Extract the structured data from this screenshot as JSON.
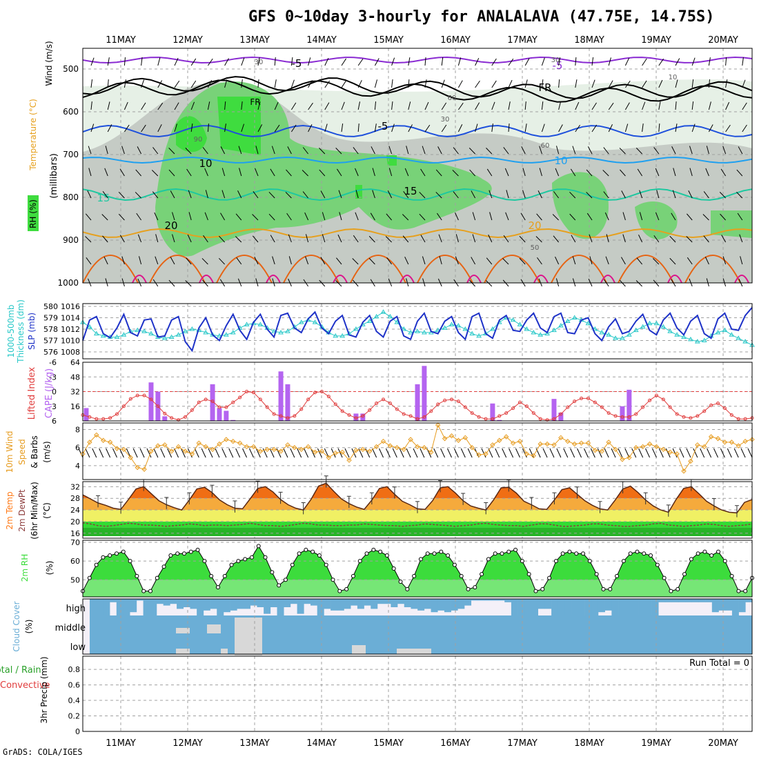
{
  "page": {
    "title": "GFS 0~10day 3-hourly for ANALALAVA (47.75E, 14.75S)",
    "footer": "GrADS: COLA/IGES",
    "colors": {
      "rh_green": "#3fdc3f",
      "rh_light": "#78d278",
      "gray_fill": "#c5cbc5",
      "pale_fill": "#e6f0e6",
      "temp_purple": "#8a2bd2",
      "temp_blue": "#1e50dc",
      "temp_cyan": "#1ea0f0",
      "temp_teal": "#1ec8a0",
      "temp_orange": "#e6a01e",
      "temp_darkorange": "#e66414",
      "temp_magenta": "#dc148c",
      "slp_color": "#1e32c8",
      "thick_color": "#28c8c8",
      "cape_color": "#b464f0",
      "li_color": "#e03c3c",
      "wind_color": "#e69b1e",
      "t2m_color": "#ff7814",
      "rh2m_color": "#3cdc3c",
      "cloud_color": "#6baed6",
      "cloud_bg": "#f4f0f8",
      "grid_color": "#a0a0a0"
    }
  },
  "chart_data": [
    {
      "panel": "upper_air",
      "type": "heatmap",
      "x_dates": [
        "11MAY",
        "12MAY",
        "13MAY",
        "14MAY",
        "15MAY",
        "16MAY",
        "17MAY",
        "18MAY",
        "19MAY",
        "20MAY"
      ],
      "ylabel_lines": [
        "Wind (m/s)",
        "Temperature (°C)",
        "RH (%)",
        "(millibars)"
      ],
      "y_ticks": [
        500,
        600,
        700,
        800,
        900,
        1000
      ],
      "isotherm_labels": [
        {
          "text": "-5",
          "color": "#8a2bd2"
        },
        {
          "text": "FR",
          "color": "#000000"
        },
        {
          "text": "-5",
          "color": "#1e50dc"
        },
        {
          "text": "10",
          "color": "#1ea0f0"
        },
        {
          "text": "15",
          "color": "#1ec8a0"
        },
        {
          "text": "20",
          "color": "#e6a01e"
        }
      ],
      "rh_labels": [
        "30",
        "10",
        "30",
        "60",
        "90",
        "60",
        "50",
        "30"
      ]
    },
    {
      "panel": "slp_thickness",
      "type": "line",
      "ylabel_left": [
        "1000-500mb",
        "Thickness (dm)"
      ],
      "ylabel_right": "SLP (mb)",
      "left_ticks": [
        576,
        577,
        578,
        579,
        580
      ],
      "right_ticks": [
        1008,
        1010,
        1012,
        1014,
        1016
      ],
      "series": [
        {
          "name": "SLP (mb)",
          "values": [
            1010.0,
            1013.6,
            1014.2,
            1011.2,
            1010.5,
            1012.2,
            1014.6,
            1011.4,
            1010.8,
            1013.6,
            1013.8,
            1010.6,
            1010.8,
            1013.6,
            1014.2,
            1009.8,
            1008.2,
            1012.2,
            1014.0,
            1011.0,
            1010.0,
            1012.6,
            1014.6,
            1011.8,
            1010.2,
            1013.2,
            1014.6,
            1012.0,
            1010.6,
            1014.4,
            1014.8,
            1012.2,
            1011.4,
            1013.8,
            1015.0,
            1012.2,
            1011.2,
            1013.4,
            1014.4,
            1011.0,
            1010.6,
            1013.2,
            1014.4,
            1011.6,
            1010.6,
            1013.4,
            1014.2,
            1010.8,
            1010.2,
            1013.4,
            1014.8,
            1011.6,
            1011.2,
            1013.4,
            1014.2,
            1011.4,
            1010.2,
            1014.2,
            1014.8,
            1011.2,
            1010.4,
            1013.6,
            1014.4,
            1011.8,
            1011.6,
            1013.6,
            1014.8,
            1012.2,
            1011.4,
            1014.2,
            1014.8,
            1011.4,
            1011.2,
            1013.6,
            1014.0,
            1011.2,
            1010.0,
            1012.4,
            1013.8,
            1011.2,
            1011.6,
            1013.4,
            1014.6,
            1011.8,
            1011.0,
            1013.6,
            1014.8,
            1012.2,
            1011.0,
            1013.4,
            1014.4,
            1011.2,
            1010.4,
            1013.8,
            1014.8,
            1012.0,
            1011.8,
            1014.4,
            1015.8
          ]
        },
        {
          "name": "Thickness (dm)",
          "values": [
            578.6,
            578.2,
            577.6,
            577.4,
            577.3,
            577.3,
            577.5,
            577.8,
            577.9,
            577.8,
            577.6,
            577.3,
            577.2,
            577.3,
            577.5,
            577.8,
            578.0,
            577.9,
            577.7,
            577.5,
            577.4,
            577.5,
            577.7,
            578.1,
            578.4,
            578.5,
            578.4,
            578.1,
            577.8,
            577.7,
            577.8,
            578.2,
            578.6,
            578.8,
            578.6,
            578.2,
            577.7,
            577.4,
            577.4,
            577.6,
            578.0,
            578.4,
            578.7,
            579.1,
            579.5,
            579.1,
            578.6,
            578.0,
            577.7,
            577.8,
            577.7,
            577.7,
            577.9,
            578.1,
            578.4,
            578.3,
            578.0,
            577.6,
            577.4,
            577.6,
            578.0,
            578.6,
            579.0,
            578.8,
            578.4,
            578.0,
            577.7,
            577.5,
            577.6,
            577.9,
            578.3,
            578.7,
            579.0,
            578.8,
            578.5,
            578.0,
            577.7,
            577.5,
            577.2,
            577.2,
            577.5,
            577.9,
            578.2,
            578.5,
            578.5,
            578.2,
            577.8,
            577.5,
            577.3,
            577.1,
            576.9,
            577.0,
            577.4,
            577.7,
            577.9,
            577.5,
            577.2,
            576.9,
            576.6
          ]
        }
      ]
    },
    {
      "panel": "cape_li",
      "type": "bar",
      "ylabel_left": "Lifted Index",
      "ylabel_right": "CAPE (J/kg)",
      "left_ticks": [
        "-6",
        "-3",
        "0",
        "3",
        "6"
      ],
      "right_ticks": [
        16,
        32,
        48,
        64
      ],
      "cape_bars": [
        {
          "t": 0.5,
          "v": 14
        },
        {
          "t": 10,
          "v": 42
        },
        {
          "t": 11,
          "v": 32
        },
        {
          "t": 12,
          "v": 5
        },
        {
          "t": 19,
          "v": 40
        },
        {
          "t": 20,
          "v": 14
        },
        {
          "t": 21,
          "v": 11
        },
        {
          "t": 22,
          "v": 1
        },
        {
          "t": 29,
          "v": 54
        },
        {
          "t": 30,
          "v": 40
        },
        {
          "t": 40,
          "v": 8
        },
        {
          "t": 41,
          "v": 8
        },
        {
          "t": 49,
          "v": 40
        },
        {
          "t": 50,
          "v": 60
        },
        {
          "t": 60,
          "v": 19
        },
        {
          "t": 61,
          "v": 1
        },
        {
          "t": 69,
          "v": 24
        },
        {
          "t": 70,
          "v": 9
        },
        {
          "t": 79,
          "v": 16
        },
        {
          "t": 80,
          "v": 34
        }
      ],
      "lifted_index": [
        4.8,
        5.2,
        5.6,
        5.6,
        5.4,
        4.6,
        3.0,
        1.5,
        0.8,
        0.8,
        1.6,
        3.0,
        4.5,
        5.4,
        5.8,
        5.2,
        3.8,
        2.2,
        1.6,
        2.0,
        3.2,
        3.2,
        2.2,
        1.2,
        0.0,
        0.2,
        1.6,
        3.2,
        4.6,
        5.0,
        5.4,
        5.0,
        3.6,
        1.6,
        0.2,
        0.0,
        1.0,
        2.6,
        4.0,
        4.8,
        5.4,
        5.0,
        3.8,
        2.4,
        1.6,
        2.4,
        3.6,
        4.6,
        5.0,
        5.6,
        5.2,
        4.0,
        2.6,
        1.8,
        1.6,
        2.0,
        3.2,
        4.4,
        5.2,
        5.6,
        5.6,
        5.0,
        4.4,
        3.4,
        2.2,
        3.0,
        4.4,
        5.6,
        5.8,
        5.6,
        4.6,
        3.2,
        2.0,
        1.4,
        1.4,
        2.2,
        3.2,
        4.4,
        5.0,
        5.2,
        5.2,
        4.6,
        3.2,
        1.8,
        0.8,
        1.6,
        3.2,
        4.6,
        5.2,
        5.4,
        5.0,
        4.0,
        2.8,
        2.4,
        3.4,
        4.8,
        5.6,
        5.6,
        5.4
      ]
    },
    {
      "panel": "wind10m",
      "type": "line",
      "ylabel": [
        "10m Wind",
        "Speed",
        "& Barbs",
        "(m/s)"
      ],
      "ticks": [
        4,
        6,
        8
      ],
      "values": [
        5.3,
        6.6,
        7.4,
        6.8,
        6.6,
        5.9,
        5.8,
        4.9,
        3.8,
        3.6,
        5.6,
        6.2,
        6.3,
        5.6,
        6.1,
        5.6,
        5.3,
        6.5,
        6.1,
        5.8,
        6.4,
        6.9,
        6.7,
        6.5,
        6.1,
        6.1,
        5.6,
        5.8,
        5.8,
        5.6,
        6.3,
        6.0,
        5.8,
        6.1,
        5.5,
        5.6,
        4.9,
        5.4,
        5.5,
        4.6,
        5.7,
        5.8,
        5.6,
        6.1,
        6.7,
        6.2,
        6.0,
        5.8,
        6.9,
        6.1,
        6.0,
        5.5,
        8.5,
        7.0,
        7.3,
        6.8,
        7.1,
        6.0,
        5.2,
        5.3,
        6.3,
        6.8,
        7.2,
        6.5,
        6.7,
        5.3,
        5.1,
        6.4,
        6.4,
        6.3,
        7.1,
        6.7,
        6.4,
        6.5,
        6.5,
        5.7,
        5.6,
        6.6,
        5.8,
        4.7,
        4.9,
        6.0,
        6.1,
        6.4,
        6.1,
        5.8,
        5.5,
        5.3,
        3.4,
        4.5,
        6.3,
        6.1,
        7.2,
        7.0,
        6.6,
        6.6,
        6.2,
        6.7,
        6.9
      ]
    },
    {
      "panel": "temp2m",
      "type": "area",
      "ylabel": [
        "2m Temp",
        "2m DewPt",
        "(6hr Min/Max)",
        "(°C)"
      ],
      "ticks": [
        16,
        20,
        24,
        28,
        32
      ],
      "temp": [
        29.2,
        27.8,
        26.4,
        25.6,
        24.6,
        24.2,
        27.6,
        31.2,
        32.0,
        29.6,
        27.2,
        25.8,
        24.8,
        24.0,
        27.4,
        31.2,
        31.8,
        30.0,
        27.4,
        25.8,
        24.6,
        24.4,
        27.8,
        31.4,
        32.0,
        30.2,
        27.6,
        25.8,
        24.6,
        24.0,
        27.6,
        32.2,
        33.2,
        30.4,
        27.8,
        26.2,
        25.0,
        24.2,
        27.4,
        31.4,
        32.0,
        29.4,
        27.0,
        25.8,
        24.4,
        24.2,
        27.2,
        31.6,
        32.0,
        29.8,
        27.2,
        25.4,
        24.6,
        24.0,
        27.4,
        31.6,
        31.8,
        29.8,
        27.0,
        25.8,
        24.4,
        24.2,
        27.4,
        31.0,
        31.6,
        29.4,
        27.2,
        25.6,
        24.4,
        24.0,
        27.4,
        31.2,
        32.2,
        30.0,
        27.4,
        25.4,
        24.0,
        23.2,
        27.6,
        31.4,
        32.0,
        29.6,
        27.0,
        25.4,
        24.0,
        23.2,
        23.0,
        26.6,
        27.6
      ],
      "dewpoint": [
        19.6,
        19.2,
        18.6,
        18.4,
        18.6,
        19.0,
        19.4,
        19.2,
        18.8,
        18.8,
        18.6,
        18.4,
        18.6,
        18.8,
        19.2,
        19.0,
        18.6,
        18.8,
        18.8,
        18.6,
        18.8,
        19.0,
        19.4,
        19.0,
        18.6,
        18.6,
        18.4,
        18.6,
        19.0,
        19.4,
        19.2,
        18.8,
        18.8,
        18.6,
        18.6,
        18.8,
        18.8,
        19.2,
        19.0,
        18.8,
        18.6,
        18.6,
        18.4,
        18.6,
        18.8,
        19.2,
        19.0,
        18.8,
        18.6,
        18.4,
        18.6,
        18.8,
        19.2,
        19.4,
        19.0,
        18.8,
        18.6,
        18.6,
        18.4,
        18.8,
        19.2,
        19.2,
        18.8,
        18.4,
        18.4,
        18.6,
        18.8,
        19.2,
        19.2,
        18.8,
        18.6,
        18.4,
        18.4,
        18.6,
        18.8,
        19.2,
        19.4,
        18.8,
        18.6,
        18.4,
        18.6,
        18.8,
        19.2,
        19.0,
        18.6,
        18.4,
        18.6,
        18.8,
        19.2
      ]
    },
    {
      "panel": "rh2m",
      "type": "area",
      "ylabel": [
        "2m RH",
        "(%)"
      ],
      "ticks": [
        50,
        60,
        70
      ],
      "values": [
        44,
        51,
        58,
        62,
        63,
        64,
        65,
        60,
        52,
        44,
        44,
        51,
        57,
        63,
        64,
        64,
        65,
        66,
        60,
        52,
        46,
        52,
        58,
        60,
        61,
        62,
        68,
        62,
        54,
        47,
        50,
        58,
        64,
        66,
        65,
        63,
        58,
        50,
        44,
        45,
        52,
        60,
        64,
        66,
        65,
        63,
        56,
        49,
        45,
        52,
        61,
        64,
        64,
        65,
        63,
        58,
        52,
        45,
        46,
        53,
        61,
        64,
        64,
        65,
        66,
        60,
        53,
        44,
        45,
        51,
        60,
        64,
        65,
        64,
        64,
        60,
        53,
        45,
        45,
        52,
        60,
        64,
        65,
        64,
        63,
        58,
        51,
        44,
        45,
        53,
        61,
        64,
        65,
        63,
        65,
        60,
        52,
        44,
        44,
        51
      ]
    },
    {
      "panel": "cloud_cover",
      "type": "bar",
      "ylabel": [
        "Cloud Cover",
        "(%)"
      ],
      "rows": [
        "high",
        "middle",
        "low"
      ]
    },
    {
      "panel": "precip",
      "type": "bar",
      "ylabel": [
        "Total / Rain",
        "Convective",
        "3hr Precip (mm)"
      ],
      "ticks": [
        0,
        0.2,
        0.4,
        0.6,
        0.8
      ],
      "values": [],
      "annotation": "Run Total = 0"
    }
  ]
}
